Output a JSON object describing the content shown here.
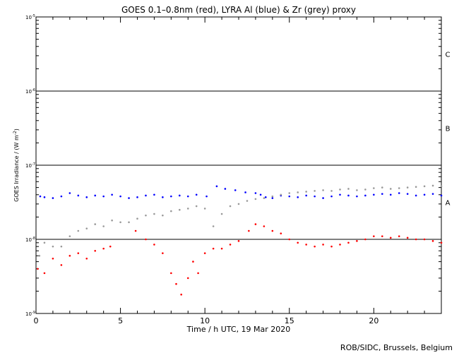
{
  "chart_data": {
    "type": "scatter",
    "title": "GOES 0.1–0.8nm (red), LYRA Al (blue) & Zr (grey) proxy",
    "xlabel": "Time / h UTC, 19 Mar 2020",
    "ylabel_main": "GOES Irradiance / (W m",
    "ylabel_exp": "-2",
    "ylabel_end": ")",
    "xlim": [
      0,
      24
    ],
    "ylim": [
      1e-09,
      1e-05
    ],
    "yscale": "log",
    "x_ticks": [
      0,
      5,
      10,
      15,
      20
    ],
    "x_tick_labels": [
      "0",
      "5",
      "10",
      "15",
      "20"
    ],
    "y_ticks": [
      1e-09,
      1e-08,
      1e-07,
      1e-06,
      1e-05
    ],
    "y_tick_labels": [
      {
        "base": "10",
        "exp": "-9"
      },
      {
        "base": "10",
        "exp": "-8"
      },
      {
        "base": "10",
        "exp": "-7"
      },
      {
        "base": "10",
        "exp": "-6"
      },
      {
        "base": "10",
        "exp": "-5"
      }
    ],
    "flare_thresholds": [
      {
        "value": 1e-08,
        "label": "A"
      },
      {
        "value": 1e-07,
        "label": "B"
      },
      {
        "value": 1e-06,
        "label": "C"
      }
    ],
    "series": [
      {
        "color": "#0000ff",
        "x": [
          0.25,
          0.5,
          1,
          1.5,
          2,
          2.5,
          3,
          3.5,
          4,
          4.5,
          5,
          5.5,
          6,
          6.5,
          7,
          7.5,
          8,
          8.5,
          9,
          9.5,
          10.1,
          10.7,
          11.2,
          11.8,
          12.4,
          13,
          13.3,
          13.6,
          14,
          14.5,
          15,
          15.5,
          16,
          16.5,
          17,
          17.5,
          18,
          18.5,
          19,
          19.5,
          20,
          20.5,
          21,
          21.5,
          22,
          22.5,
          23,
          23.5,
          24
        ],
        "y": [
          3.8e-08,
          3.7e-08,
          3.6e-08,
          3.8e-08,
          4.2e-08,
          3.9e-08,
          3.7e-08,
          3.9e-08,
          3.8e-08,
          4e-08,
          3.8e-08,
          3.6e-08,
          3.7e-08,
          3.9e-08,
          4e-08,
          3.7e-08,
          3.8e-08,
          3.9e-08,
          3.8e-08,
          4e-08,
          3.8e-08,
          5.2e-08,
          4.8e-08,
          4.6e-08,
          4.3e-08,
          4.2e-08,
          4e-08,
          3.7e-08,
          3.6e-08,
          3.9e-08,
          3.8e-08,
          3.7e-08,
          3.9e-08,
          3.8e-08,
          3.6e-08,
          3.8e-08,
          4e-08,
          3.9e-08,
          3.8e-08,
          3.9e-08,
          4e-08,
          4.1e-08,
          4e-08,
          4.2e-08,
          4.1e-08,
          3.9e-08,
          4e-08,
          4.1e-08,
          3.9e-08
        ]
      },
      {
        "color": "#999999",
        "x": [
          0.2,
          0.5,
          1,
          1.5,
          2,
          2.5,
          3,
          3.5,
          4,
          4.5,
          5,
          5.5,
          6,
          6.5,
          7,
          7.5,
          8,
          8.5,
          9,
          9.5,
          10,
          10.5,
          11,
          11.5,
          12,
          12.5,
          13,
          13.5,
          14,
          14.5,
          15,
          15.5,
          16,
          16.5,
          17,
          17.5,
          18,
          18.5,
          19,
          19.5,
          20,
          20.5,
          21,
          21.5,
          22,
          22.5,
          23,
          23.5,
          24
        ],
        "y": [
          6e-09,
          9e-09,
          8e-09,
          8e-09,
          1.1e-08,
          1.3e-08,
          1.4e-08,
          1.6e-08,
          1.5e-08,
          1.8e-08,
          1.7e-08,
          1.7e-08,
          1.9e-08,
          2.1e-08,
          2.2e-08,
          2.1e-08,
          2.4e-08,
          2.5e-08,
          2.6e-08,
          2.8e-08,
          2.6e-08,
          1.5e-08,
          2.2e-08,
          2.8e-08,
          3e-08,
          3.3e-08,
          3.5e-08,
          3.6e-08,
          3.8e-08,
          4e-08,
          4.2e-08,
          4.3e-08,
          4.4e-08,
          4.5e-08,
          4.6e-08,
          4.5e-08,
          4.7e-08,
          4.8e-08,
          4.6e-08,
          4.7e-08,
          4.9e-08,
          5e-08,
          4.8e-08,
          4.9e-08,
          5e-08,
          5.1e-08,
          5.2e-08,
          5.3e-08,
          5.2e-08
        ]
      },
      {
        "color": "#ff0000",
        "x": [
          0.1,
          0.5,
          1,
          1.5,
          2,
          2.5,
          3,
          3.5,
          4,
          4.4,
          5.9,
          6.5,
          7,
          7.5,
          8,
          8.3,
          8.6,
          9,
          9.3,
          9.6,
          10,
          10.5,
          11,
          11.5,
          12,
          12.6,
          13,
          13.5,
          14,
          14.5,
          15,
          15.5,
          16,
          16.5,
          17,
          17.5,
          18,
          18.5,
          19,
          19.5,
          20,
          20.5,
          21,
          21.5,
          22,
          22.5,
          23,
          23.5,
          24
        ],
        "y": [
          4e-09,
          3.5e-09,
          5.5e-09,
          4.5e-09,
          6e-09,
          6.5e-09,
          5.5e-09,
          7e-09,
          7.5e-09,
          8e-09,
          1.3e-08,
          1e-08,
          8.5e-09,
          6.5e-09,
          3.5e-09,
          2.5e-09,
          1.8e-09,
          3e-09,
          5e-09,
          3.5e-09,
          6.5e-09,
          7.5e-09,
          7.5e-09,
          8.5e-09,
          9.5e-09,
          1.3e-08,
          1.6e-08,
          1.5e-08,
          1.3e-08,
          1.2e-08,
          1e-08,
          9e-09,
          8.5e-09,
          8e-09,
          8.5e-09,
          8e-09,
          8.5e-09,
          9e-09,
          9.5e-09,
          1e-08,
          1.1e-08,
          1.1e-08,
          1.05e-08,
          1.1e-08,
          1.05e-08,
          1e-08,
          1e-08,
          9.5e-09,
          9e-09
        ]
      }
    ],
    "legend": "none",
    "grid": false
  },
  "credit": "ROB/SIDC, Brussels, Belgium"
}
